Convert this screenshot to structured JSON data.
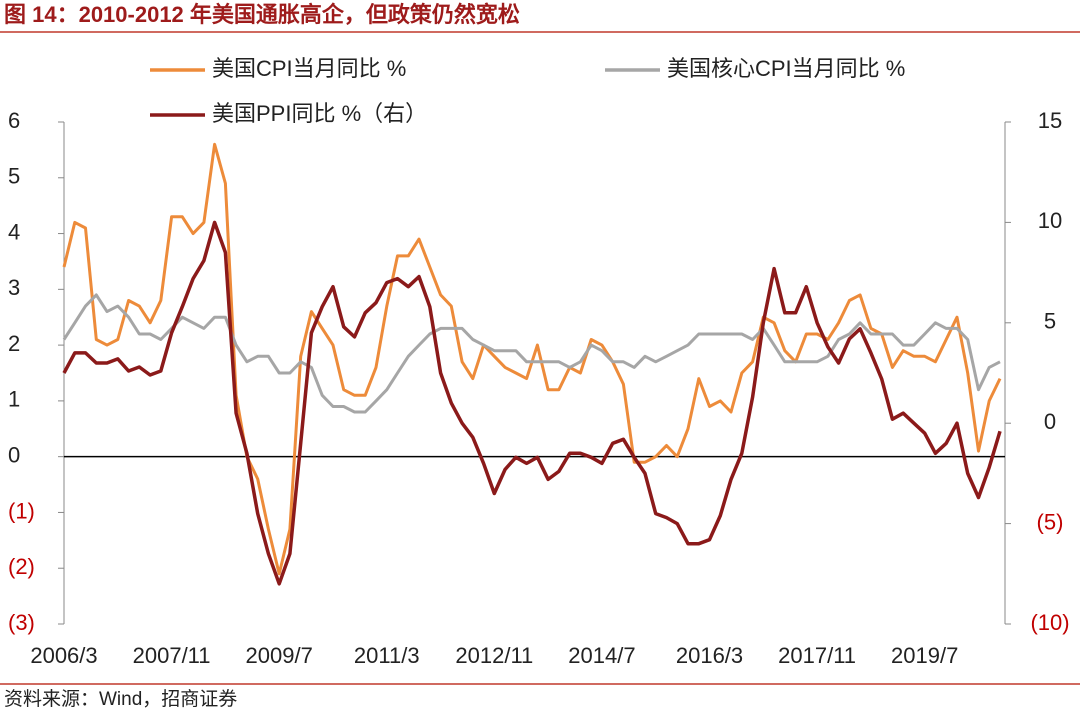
{
  "chart_data": {
    "type": "line",
    "title": "图 14：2010-2012 年美国通胀高企，但政策仍然宽松",
    "source": "资料来源：Wind，招商证券",
    "categories": [
      "2006/3",
      null,
      null,
      null,
      null,
      null,
      null,
      null,
      null,
      null,
      "2007/11",
      null,
      null,
      null,
      null,
      null,
      null,
      null,
      null,
      null,
      "2009/7",
      null,
      null,
      null,
      null,
      null,
      null,
      null,
      null,
      null,
      "2011/3",
      null,
      null,
      null,
      null,
      null,
      null,
      null,
      null,
      null,
      "2012/11",
      null,
      null,
      null,
      null,
      null,
      null,
      null,
      null,
      null,
      "2014/7",
      null,
      null,
      null,
      null,
      null,
      null,
      null,
      null,
      null,
      "2016/3",
      null,
      null,
      null,
      null,
      null,
      null,
      null,
      null,
      null,
      "2017/11",
      null,
      null,
      null,
      null,
      null,
      null,
      null,
      null,
      null,
      "2019/7",
      null,
      null,
      null,
      null,
      null,
      null,
      null
    ],
    "ylim": [
      -3,
      6
    ],
    "yticks": [
      {
        "value": -3,
        "label": "(3)"
      },
      {
        "value": -2,
        "label": "(2)"
      },
      {
        "value": -1,
        "label": "(1)"
      },
      0,
      1,
      2,
      3,
      4,
      5,
      6
    ],
    "y2lim": [
      -10,
      15
    ],
    "y2ticks": [
      {
        "value": -10,
        "label": "(10)"
      },
      {
        "value": -5,
        "label": "(5)"
      },
      0,
      5,
      10,
      15
    ],
    "negative_label_color": "#c00000",
    "series": [
      {
        "name": "美国CPI当月同比 %",
        "color": "#ed8b3a",
        "values": [
          3.4,
          4.2,
          4.1,
          2.1,
          2.0,
          2.1,
          2.8,
          2.7,
          2.4,
          2.8,
          4.3,
          4.3,
          4.0,
          4.2,
          5.6,
          4.9,
          1.1,
          0.0,
          -0.4,
          -1.3,
          -2.1,
          -1.3,
          1.8,
          2.6,
          2.3,
          2.0,
          1.2,
          1.1,
          1.1,
          1.6,
          2.7,
          3.6,
          3.6,
          3.9,
          3.4,
          2.9,
          2.7,
          1.7,
          1.4,
          2.0,
          1.8,
          1.6,
          1.5,
          1.4,
          2.0,
          1.2,
          1.2,
          1.6,
          1.5,
          2.1,
          2.0,
          1.7,
          1.3,
          -0.1,
          -0.1,
          0.0,
          0.2,
          0.0,
          0.5,
          1.4,
          0.9,
          1.0,
          0.8,
          1.5,
          1.7,
          2.5,
          2.4,
          1.9,
          1.7,
          2.2,
          2.2,
          2.1,
          2.4,
          2.8,
          2.9,
          2.3,
          2.2,
          1.6,
          1.9,
          1.8,
          1.8,
          1.7,
          2.1,
          2.5,
          1.5,
          0.1,
          1.0,
          1.4
        ]
      },
      {
        "name": "美国核心CPI当月同比 %",
        "color": "#a6a6a6",
        "values": [
          2.1,
          2.4,
          2.7,
          2.9,
          2.6,
          2.7,
          2.5,
          2.2,
          2.2,
          2.1,
          2.3,
          2.5,
          2.4,
          2.3,
          2.5,
          2.5,
          2.0,
          1.7,
          1.8,
          1.8,
          1.5,
          1.5,
          1.7,
          1.6,
          1.1,
          0.9,
          0.9,
          0.8,
          0.8,
          1.0,
          1.2,
          1.5,
          1.8,
          2.0,
          2.2,
          2.3,
          2.3,
          2.3,
          2.1,
          2.0,
          1.9,
          1.9,
          1.9,
          1.7,
          1.7,
          1.7,
          1.7,
          1.6,
          1.7,
          2.0,
          1.9,
          1.7,
          1.7,
          1.6,
          1.8,
          1.7,
          1.8,
          1.9,
          2.0,
          2.2,
          2.2,
          2.2,
          2.2,
          2.2,
          2.1,
          2.3,
          2.0,
          1.7,
          1.7,
          1.7,
          1.7,
          1.8,
          2.1,
          2.2,
          2.4,
          2.2,
          2.2,
          2.2,
          2.0,
          2.0,
          2.2,
          2.4,
          2.3,
          2.3,
          2.1,
          1.2,
          1.6,
          1.7
        ]
      },
      {
        "name": "美国PPI同比 %（右）",
        "color": "#8b1a1a",
        "axis": "y2",
        "values": [
          2.5,
          3.5,
          3.5,
          3.0,
          3.0,
          3.2,
          2.6,
          2.8,
          2.4,
          2.6,
          4.5,
          5.8,
          7.2,
          8.1,
          10.0,
          8.5,
          0.5,
          -1.5,
          -4.5,
          -6.5,
          -8.0,
          -6.5,
          -1.0,
          4.5,
          5.8,
          6.8,
          4.8,
          4.3,
          5.5,
          6.0,
          7.0,
          7.2,
          6.8,
          7.3,
          5.8,
          2.5,
          1.0,
          0.0,
          -0.7,
          -2.0,
          -3.5,
          -2.3,
          -1.7,
          -2.0,
          -1.7,
          -2.8,
          -2.4,
          -1.5,
          -1.5,
          -1.7,
          -2.0,
          -1.0,
          -0.8,
          -1.7,
          -2.5,
          -4.5,
          -4.7,
          -5.0,
          -6.0,
          -6.0,
          -5.8,
          -4.6,
          -2.8,
          -1.5,
          1.3,
          5.0,
          7.7,
          5.5,
          5.5,
          6.8,
          5.0,
          3.8,
          3.0,
          4.2,
          4.7,
          3.5,
          2.2,
          0.2,
          0.5,
          0.0,
          -0.5,
          -1.5,
          -1.0,
          0.0,
          -2.5,
          -3.7,
          -2.2,
          -0.4
        ]
      }
    ]
  }
}
